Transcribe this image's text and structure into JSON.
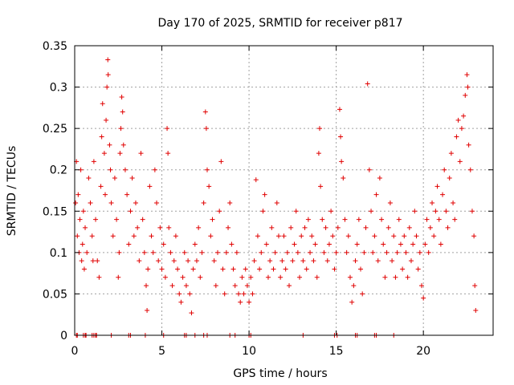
{
  "chart_data": {
    "type": "scatter",
    "title": "Day 170 of 2025, SRMTID for receiver p817",
    "xlabel": "GPS time / hours",
    "ylabel": "SRMTID / TECUs",
    "xlim": [
      0,
      24
    ],
    "ylim": [
      0,
      0.35
    ],
    "x_ticks": [
      0,
      5,
      10,
      15,
      20
    ],
    "y_ticks": [
      0,
      0.05,
      0.1,
      0.15,
      0.2,
      0.25,
      0.3,
      0.35
    ],
    "grid": true,
    "marker": "+",
    "series": [
      {
        "name": "SRMTID",
        "color": "#e00000",
        "points": [
          [
            0.05,
            0.16
          ],
          [
            0.1,
            0.21
          ],
          [
            0.15,
            0.12
          ],
          [
            0.2,
            0.17
          ],
          [
            0.25,
            0.1
          ],
          [
            0.3,
            0.14
          ],
          [
            0.35,
            0.2
          ],
          [
            0.4,
            0.09
          ],
          [
            0.45,
            0.11
          ],
          [
            0.5,
            0.15
          ],
          [
            0.55,
            0.08
          ],
          [
            0.6,
            0.13
          ],
          [
            0.7,
            0.1
          ],
          [
            0.8,
            0.19
          ],
          [
            0.9,
            0.16
          ],
          [
            1.0,
            0.12
          ],
          [
            1.05,
            0.09
          ],
          [
            1.1,
            0.21
          ],
          [
            1.2,
            0.14
          ],
          [
            1.3,
            0.09
          ],
          [
            1.4,
            0.07
          ],
          [
            1.5,
            0.18
          ],
          [
            1.55,
            0.24
          ],
          [
            1.6,
            0.28
          ],
          [
            1.7,
            0.22
          ],
          [
            1.75,
            0.17
          ],
          [
            1.8,
            0.26
          ],
          [
            1.85,
            0.3
          ],
          [
            1.9,
            0.333
          ],
          [
            1.92,
            0.315
          ],
          [
            2.0,
            0.23
          ],
          [
            2.05,
            0.2
          ],
          [
            2.1,
            0.16
          ],
          [
            2.2,
            0.12
          ],
          [
            2.3,
            0.19
          ],
          [
            2.4,
            0.14
          ],
          [
            2.5,
            0.07
          ],
          [
            2.55,
            0.1
          ],
          [
            2.6,
            0.22
          ],
          [
            2.65,
            0.25
          ],
          [
            2.7,
            0.288
          ],
          [
            2.75,
            0.27
          ],
          [
            2.8,
            0.23
          ],
          [
            2.9,
            0.2
          ],
          [
            3.0,
            0.17
          ],
          [
            3.1,
            0.11
          ],
          [
            3.2,
            0.15
          ],
          [
            3.3,
            0.19
          ],
          [
            3.4,
            0.12
          ],
          [
            3.5,
            0.16
          ],
          [
            3.6,
            0.13
          ],
          [
            3.7,
            0.09
          ],
          [
            3.8,
            0.22
          ],
          [
            3.9,
            0.14
          ],
          [
            4.0,
            0.1
          ],
          [
            4.1,
            0.06
          ],
          [
            4.15,
            0.03
          ],
          [
            4.2,
            0.08
          ],
          [
            4.3,
            0.18
          ],
          [
            4.4,
            0.12
          ],
          [
            4.5,
            0.1
          ],
          [
            4.6,
            0.2
          ],
          [
            4.7,
            0.16
          ],
          [
            4.8,
            0.09
          ],
          [
            4.9,
            0.13
          ],
          [
            5.0,
            0.08
          ],
          [
            5.1,
            0.11
          ],
          [
            5.2,
            0.07
          ],
          [
            5.3,
            0.25
          ],
          [
            5.35,
            0.22
          ],
          [
            5.4,
            0.13
          ],
          [
            5.5,
            0.1
          ],
          [
            5.6,
            0.06
          ],
          [
            5.7,
            0.09
          ],
          [
            5.8,
            0.12
          ],
          [
            5.9,
            0.08
          ],
          [
            6.0,
            0.05
          ],
          [
            6.1,
            0.04
          ],
          [
            6.2,
            0.07
          ],
          [
            6.3,
            0.1
          ],
          [
            6.4,
            0.06
          ],
          [
            6.5,
            0.09
          ],
          [
            6.6,
            0.05
          ],
          [
            6.7,
            0.027
          ],
          [
            6.8,
            0.08
          ],
          [
            6.9,
            0.11
          ],
          [
            7.0,
            0.09
          ],
          [
            7.1,
            0.13
          ],
          [
            7.2,
            0.07
          ],
          [
            7.3,
            0.1
          ],
          [
            7.4,
            0.16
          ],
          [
            7.5,
            0.27
          ],
          [
            7.55,
            0.25
          ],
          [
            7.6,
            0.2
          ],
          [
            7.7,
            0.18
          ],
          [
            7.8,
            0.12
          ],
          [
            7.9,
            0.14
          ],
          [
            8.0,
            0.09
          ],
          [
            8.1,
            0.06
          ],
          [
            8.2,
            0.1
          ],
          [
            8.3,
            0.15
          ],
          [
            8.4,
            0.21
          ],
          [
            8.5,
            0.08
          ],
          [
            8.6,
            0.05
          ],
          [
            8.7,
            0.1
          ],
          [
            8.8,
            0.13
          ],
          [
            8.9,
            0.16
          ],
          [
            9.0,
            0.11
          ],
          [
            9.1,
            0.08
          ],
          [
            9.2,
            0.06
          ],
          [
            9.3,
            0.1
          ],
          [
            9.4,
            0.05
          ],
          [
            9.5,
            0.04
          ],
          [
            9.6,
            0.07
          ],
          [
            9.7,
            0.05
          ],
          [
            9.8,
            0.08
          ],
          [
            9.9,
            0.06
          ],
          [
            10.0,
            0.04
          ],
          [
            10.1,
            0.07
          ],
          [
            10.2,
            0.05
          ],
          [
            10.3,
            0.09
          ],
          [
            10.4,
            0.188
          ],
          [
            10.5,
            0.12
          ],
          [
            10.6,
            0.08
          ],
          [
            10.7,
            0.1
          ],
          [
            10.8,
            0.15
          ],
          [
            10.9,
            0.17
          ],
          [
            11.0,
            0.11
          ],
          [
            11.1,
            0.07
          ],
          [
            11.2,
            0.09
          ],
          [
            11.3,
            0.13
          ],
          [
            11.4,
            0.08
          ],
          [
            11.5,
            0.1
          ],
          [
            11.6,
            0.16
          ],
          [
            11.7,
            0.12
          ],
          [
            11.8,
            0.07
          ],
          [
            11.9,
            0.09
          ],
          [
            12.0,
            0.12
          ],
          [
            12.1,
            0.08
          ],
          [
            12.2,
            0.1
          ],
          [
            12.3,
            0.06
          ],
          [
            12.4,
            0.13
          ],
          [
            12.5,
            0.09
          ],
          [
            12.6,
            0.11
          ],
          [
            12.7,
            0.15
          ],
          [
            12.8,
            0.1
          ],
          [
            12.9,
            0.07
          ],
          [
            13.0,
            0.12
          ],
          [
            13.1,
            0.09
          ],
          [
            13.2,
            0.13
          ],
          [
            13.3,
            0.08
          ],
          [
            13.4,
            0.14
          ],
          [
            13.5,
            0.1
          ],
          [
            13.6,
            0.12
          ],
          [
            13.7,
            0.09
          ],
          [
            13.8,
            0.11
          ],
          [
            13.9,
            0.07
          ],
          [
            14.0,
            0.22
          ],
          [
            14.05,
            0.25
          ],
          [
            14.1,
            0.18
          ],
          [
            14.2,
            0.14
          ],
          [
            14.3,
            0.1
          ],
          [
            14.4,
            0.13
          ],
          [
            14.5,
            0.09
          ],
          [
            14.6,
            0.11
          ],
          [
            14.7,
            0.15
          ],
          [
            14.8,
            0.12
          ],
          [
            14.9,
            0.08
          ],
          [
            15.0,
            0.1
          ],
          [
            15.1,
            0.13
          ],
          [
            15.2,
            0.273
          ],
          [
            15.25,
            0.24
          ],
          [
            15.3,
            0.21
          ],
          [
            15.4,
            0.19
          ],
          [
            15.5,
            0.14
          ],
          [
            15.6,
            0.1
          ],
          [
            15.7,
            0.12
          ],
          [
            15.8,
            0.07
          ],
          [
            15.9,
            0.04
          ],
          [
            16.0,
            0.06
          ],
          [
            16.1,
            0.09
          ],
          [
            16.2,
            0.11
          ],
          [
            16.3,
            0.14
          ],
          [
            16.4,
            0.08
          ],
          [
            16.5,
            0.05
          ],
          [
            16.6,
            0.1
          ],
          [
            16.7,
            0.13
          ],
          [
            16.8,
            0.304
          ],
          [
            16.9,
            0.2
          ],
          [
            17.0,
            0.15
          ],
          [
            17.1,
            0.1
          ],
          [
            17.2,
            0.12
          ],
          [
            17.3,
            0.17
          ],
          [
            17.4,
            0.09
          ],
          [
            17.5,
            0.19
          ],
          [
            17.6,
            0.14
          ],
          [
            17.7,
            0.11
          ],
          [
            17.8,
            0.07
          ],
          [
            17.9,
            0.1
          ],
          [
            18.0,
            0.13
          ],
          [
            18.1,
            0.16
          ],
          [
            18.2,
            0.09
          ],
          [
            18.3,
            0.12
          ],
          [
            18.4,
            0.07
          ],
          [
            18.5,
            0.1
          ],
          [
            18.6,
            0.14
          ],
          [
            18.7,
            0.11
          ],
          [
            18.8,
            0.08
          ],
          [
            18.9,
            0.12
          ],
          [
            19.0,
            0.1
          ],
          [
            19.1,
            0.07
          ],
          [
            19.2,
            0.13
          ],
          [
            19.3,
            0.09
          ],
          [
            19.4,
            0.11
          ],
          [
            19.5,
            0.15
          ],
          [
            19.6,
            0.12
          ],
          [
            19.7,
            0.08
          ],
          [
            19.8,
            0.1
          ],
          [
            19.9,
            0.06
          ],
          [
            20.0,
            0.045
          ],
          [
            20.1,
            0.11
          ],
          [
            20.2,
            0.14
          ],
          [
            20.3,
            0.1
          ],
          [
            20.4,
            0.13
          ],
          [
            20.5,
            0.16
          ],
          [
            20.6,
            0.12
          ],
          [
            20.7,
            0.15
          ],
          [
            20.8,
            0.18
          ],
          [
            20.9,
            0.14
          ],
          [
            21.0,
            0.11
          ],
          [
            21.1,
            0.17
          ],
          [
            21.2,
            0.2
          ],
          [
            21.3,
            0.15
          ],
          [
            21.4,
            0.13
          ],
          [
            21.5,
            0.19
          ],
          [
            21.6,
            0.22
          ],
          [
            21.7,
            0.16
          ],
          [
            21.8,
            0.14
          ],
          [
            21.9,
            0.24
          ],
          [
            22.0,
            0.26
          ],
          [
            22.1,
            0.21
          ],
          [
            22.2,
            0.25
          ],
          [
            22.3,
            0.265
          ],
          [
            22.4,
            0.29
          ],
          [
            22.5,
            0.315
          ],
          [
            22.55,
            0.3
          ],
          [
            22.6,
            0.23
          ],
          [
            22.7,
            0.2
          ],
          [
            22.8,
            0.15
          ],
          [
            22.9,
            0.12
          ],
          [
            22.95,
            0.06
          ],
          [
            23.0,
            0.03
          ]
        ]
      }
    ],
    "zero_points_x": [
      0.1,
      0.15,
      0.5,
      0.6,
      0.65,
      1.0,
      1.1,
      1.2,
      1.25,
      2.1,
      3.1,
      3.2,
      4.05,
      5.1,
      6.3,
      6.4,
      6.9,
      7.4,
      7.6,
      8.9,
      9.2,
      10.0,
      10.1,
      13.1,
      14.9,
      15.05,
      16.1,
      16.2,
      17.2,
      17.3,
      18.3
    ]
  }
}
